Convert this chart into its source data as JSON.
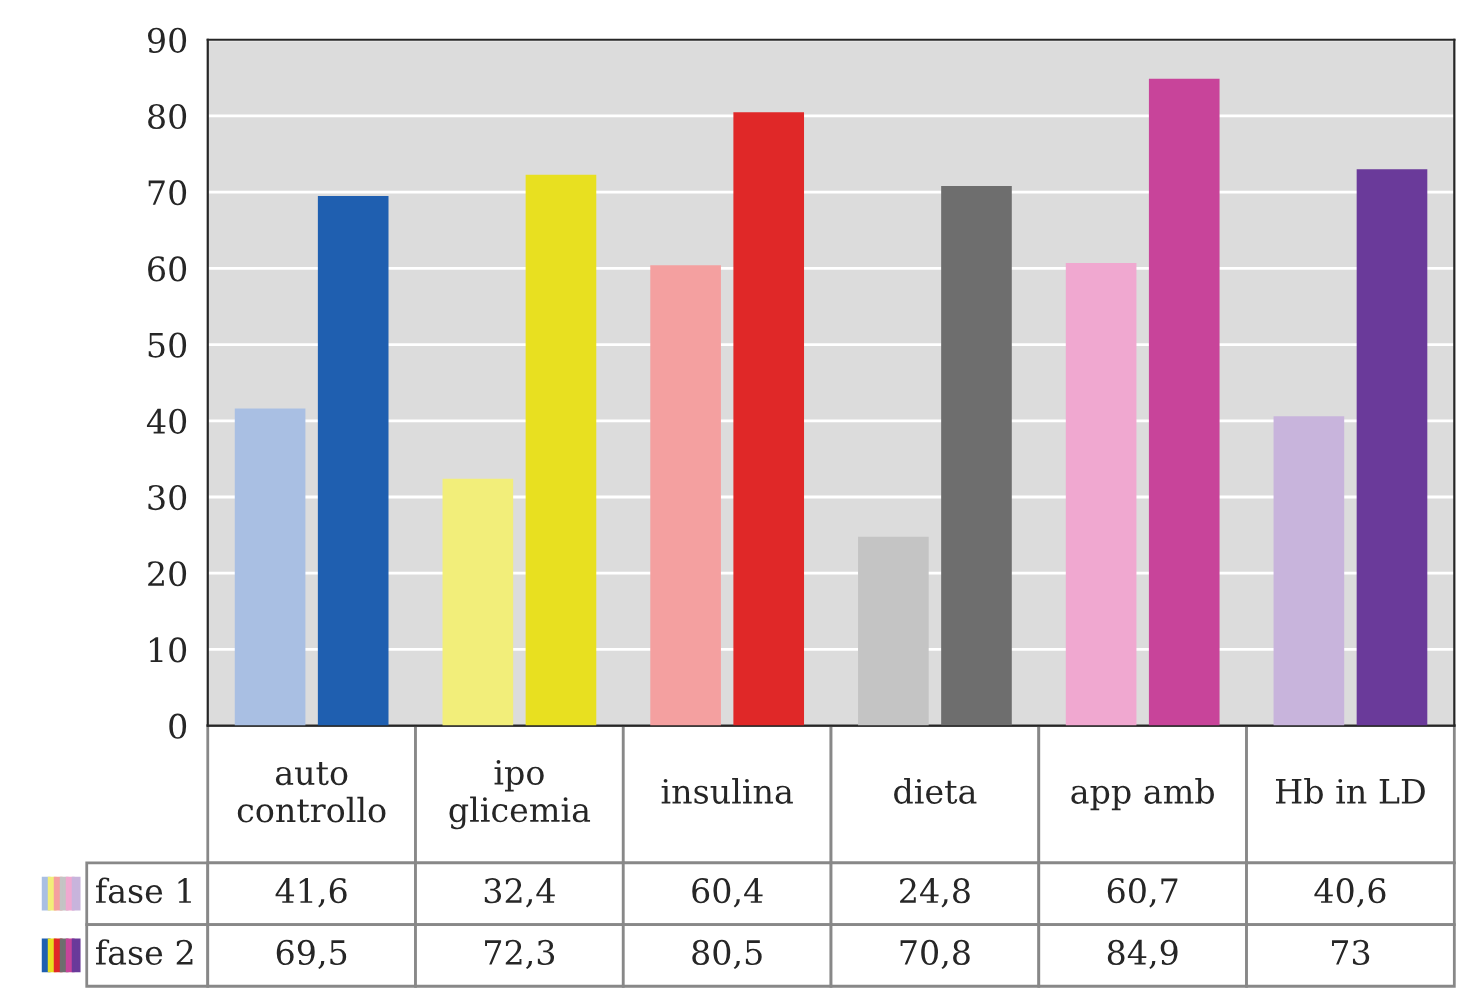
{
  "chart_data": {
    "type": "bar",
    "categories": [
      "auto\ncontrollo",
      "ipo\nglicemia",
      "insulina",
      "dieta",
      "app amb",
      "Hb in LD"
    ],
    "series": [
      {
        "name": "fase 1",
        "colors": [
          "#a9bfe3",
          "#f2ee7a",
          "#f4a0a0",
          "#c4c4c4",
          "#f0a8d0",
          "#c8b4dc"
        ],
        "values": [
          41.6,
          32.4,
          60.4,
          24.8,
          60.7,
          40.6
        ],
        "value_labels": [
          "41,6",
          "32,4",
          "60,4",
          "24,8",
          "60,7",
          "40,6"
        ]
      },
      {
        "name": "fase 2",
        "colors": [
          "#1f5fb0",
          "#e8e020",
          "#e02828",
          "#6e6e6e",
          "#c8449a",
          "#6a3a9a"
        ],
        "values": [
          69.5,
          72.3,
          80.5,
          70.8,
          84.9,
          73
        ],
        "value_labels": [
          "69,5",
          "72,3",
          "80,5",
          "70,8",
          "84,9",
          "73"
        ]
      }
    ],
    "ylim": [
      0,
      90
    ],
    "yticks": [
      0,
      10,
      20,
      30,
      40,
      50,
      60,
      70,
      80,
      90
    ],
    "grid": "y",
    "legend": "bottom left"
  }
}
